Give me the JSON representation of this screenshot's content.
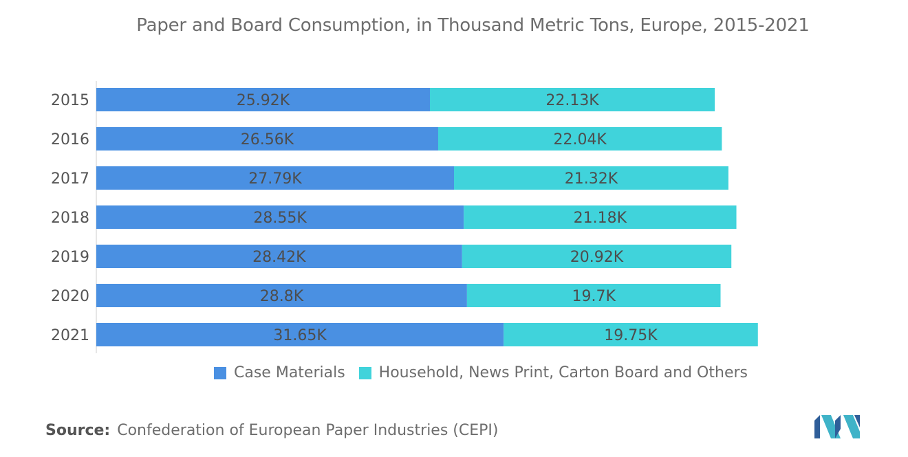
{
  "chart_data": {
    "type": "bar",
    "orientation": "horizontal",
    "stacked": true,
    "title": "Paper and Board Consumption, in Thousand Metric Tons, Europe, 2015-2021",
    "categories": [
      "2015",
      "2016",
      "2017",
      "2018",
      "2019",
      "2020",
      "2021"
    ],
    "series": [
      {
        "name": "Case Materials",
        "color": "#4a90e2",
        "values": [
          25.92,
          26.56,
          27.79,
          28.55,
          28.42,
          28.8,
          31.65
        ],
        "labels": [
          "25.92K",
          "26.56K",
          "27.79K",
          "28.55K",
          "28.42K",
          "28.8K",
          "31.65K"
        ]
      },
      {
        "name": "Household, News Print, Carton Board and Others",
        "color": "#40d3db",
        "values": [
          22.13,
          22.04,
          21.32,
          21.18,
          20.92,
          19.7,
          19.75
        ],
        "labels": [
          "22.13K",
          "22.04K",
          "21.32K",
          "21.18K",
          "20.92K",
          "19.7K",
          "19.75K"
        ]
      }
    ],
    "xlim": [
      0,
      52
    ],
    "grid": false,
    "legend_position": "bottom"
  },
  "source": {
    "label": "Source:",
    "text": "Confederation of European Paper Industries (CEPI)"
  },
  "logo": {
    "name": "mordor-intelligence-logo"
  }
}
